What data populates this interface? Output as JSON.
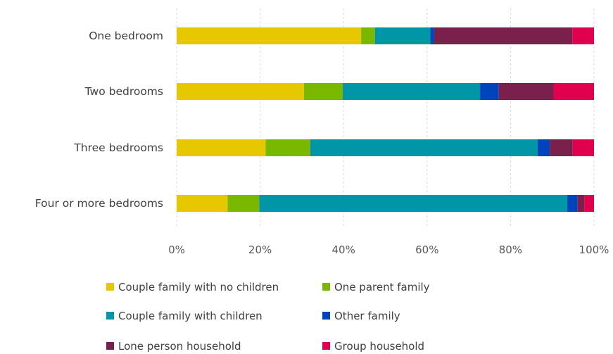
{
  "chart_data": {
    "type": "bar",
    "orientation": "horizontal",
    "stacked": "percent",
    "title": "",
    "xlabel": "",
    "ylabel": "",
    "xlim": [
      0,
      100
    ],
    "x_ticks": [
      "0%",
      "20%",
      "40%",
      "60%",
      "80%",
      "100%"
    ],
    "grid": true,
    "legend_position": "bottom",
    "categories": [
      "One bedroom",
      "Two bedrooms",
      "Three bedrooms",
      "Four or more bedrooms"
    ],
    "series": [
      {
        "name": "Couple family with no children",
        "color": "#e6c800",
        "values": [
          44.2,
          30.5,
          21.3,
          12.2
        ]
      },
      {
        "name": "One parent family",
        "color": "#7ab800",
        "values": [
          3.3,
          9.3,
          10.7,
          7.6
        ]
      },
      {
        "name": "Couple family with children",
        "color": "#0096a8",
        "values": [
          13.3,
          32.9,
          54.5,
          73.8
        ]
      },
      {
        "name": "Other family",
        "color": "#0044bb",
        "values": [
          0.9,
          4.5,
          2.9,
          2.4
        ]
      },
      {
        "name": "Lone person household",
        "color": "#7b1f4c",
        "values": [
          33.1,
          13.1,
          5.5,
          1.7
        ]
      },
      {
        "name": "Group household",
        "color": "#e0004d",
        "values": [
          5.2,
          9.7,
          5.1,
          2.3
        ]
      }
    ]
  }
}
